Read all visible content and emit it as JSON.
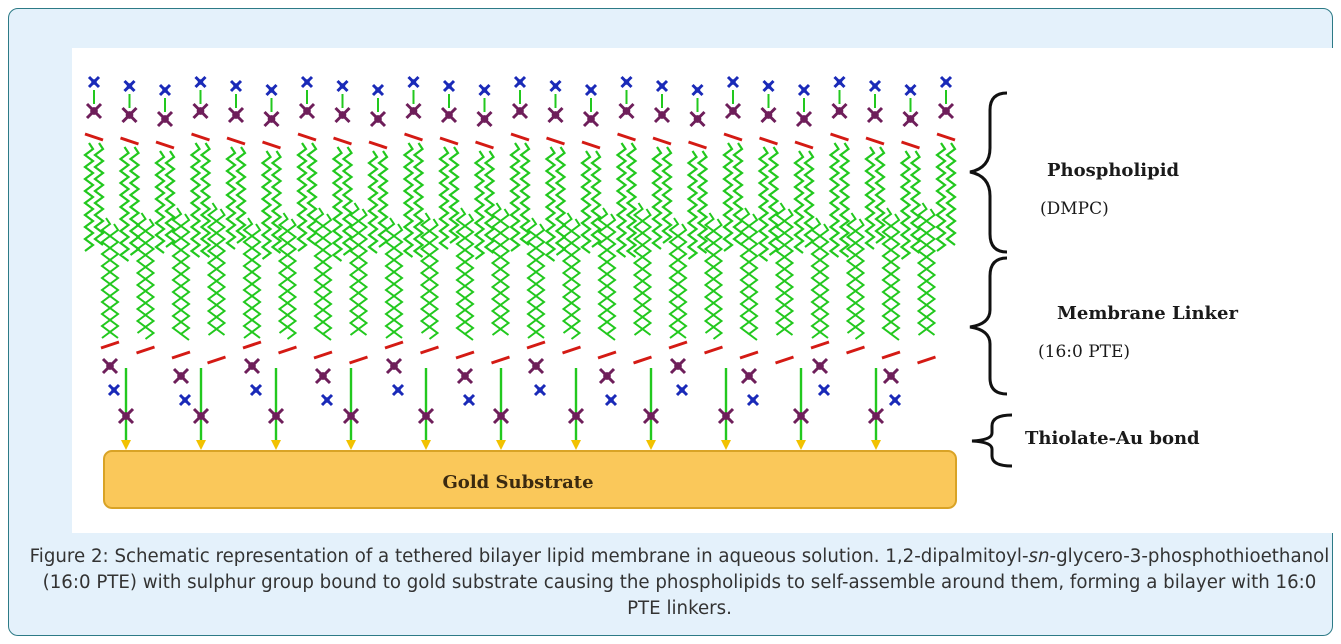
{
  "figure": {
    "labels": {
      "phospholipid": "Phospholipid",
      "phospholipid_sub": "(DMPC)",
      "linker": "Membrane Linker",
      "linker_sub": "(16:0 PTE)",
      "bond": "Thiolate-Au bond",
      "substrate": "Gold Substrate"
    },
    "colors": {
      "tail": "#22c81e",
      "oxygen": "#d41a14",
      "phosphate": "#6e1e5a",
      "nitrogen": "#1a2ab8",
      "sulfur": "#f2c200",
      "gold_fill": "#fac85a",
      "gold_stroke": "#d9a326"
    },
    "top_lipid_count": 25,
    "anchor_count": 11
  },
  "caption": {
    "prefix": "Figure 2: Schematic representation of a tethered bilayer lipid membrane in aqueous solution. 1,2-dipalmitoyl-",
    "italic": "sn",
    "suffix": "-glycero-3-phosphothioethanol (16:0 PTE) with sulphur group bound to gold substrate causing the phospholipids to self-assemble around them, forming a bilayer with 16:0 PTE linkers."
  }
}
